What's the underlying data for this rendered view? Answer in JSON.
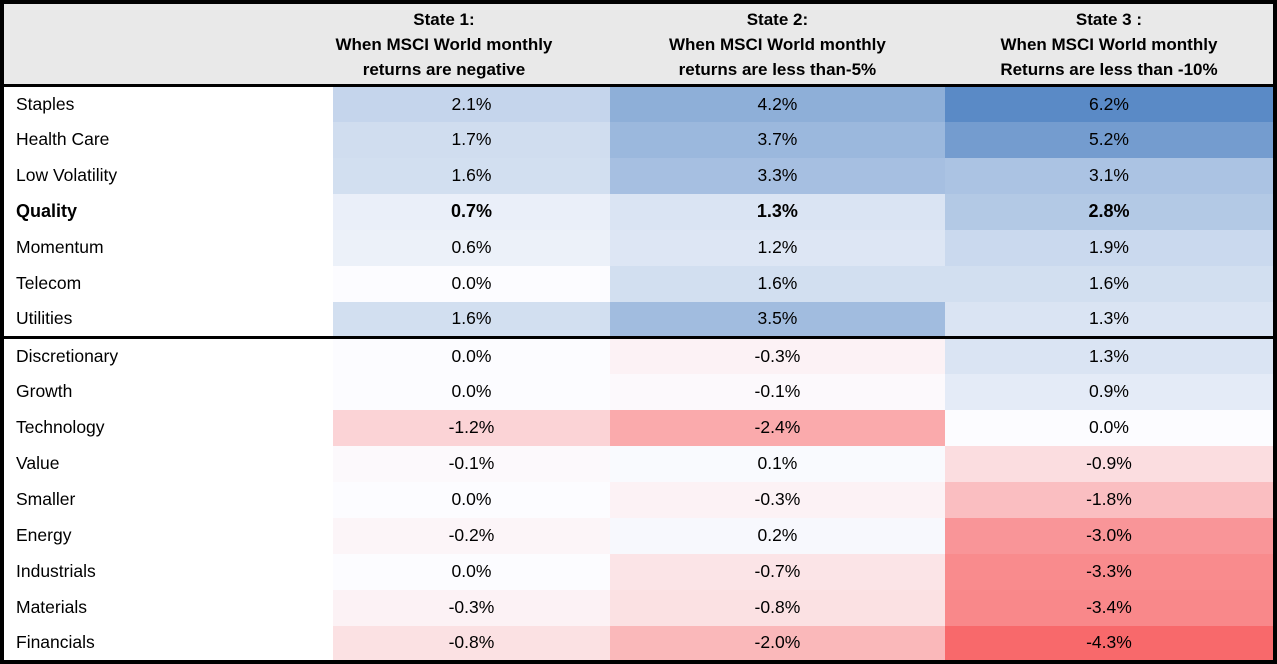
{
  "chart_data": {
    "type": "heatmap",
    "unit": "%",
    "column_headers": [
      {
        "lines": [
          "State 1:",
          "When MSCI World monthly",
          "returns are negative"
        ]
      },
      {
        "lines": [
          "State 2:",
          "When MSCI World monthly",
          "returns are less than-5%"
        ]
      },
      {
        "lines": [
          "State 3 :",
          "When MSCI World monthly",
          "Returns are less than -10%"
        ]
      }
    ],
    "row_groups": [
      {
        "name": "defensive-factors",
        "rows": [
          {
            "label": "Staples",
            "values": [
              2.1,
              4.2,
              6.2
            ],
            "bold": false
          },
          {
            "label": "Health Care",
            "values": [
              1.7,
              3.7,
              5.2
            ],
            "bold": false
          },
          {
            "label": "Low Volatility",
            "values": [
              1.6,
              3.3,
              3.1
            ],
            "bold": false
          },
          {
            "label": "Quality",
            "values": [
              0.7,
              1.3,
              2.8
            ],
            "bold": true
          },
          {
            "label": "Momentum",
            "values": [
              0.6,
              1.2,
              1.9
            ],
            "bold": false
          },
          {
            "label": "Telecom",
            "values": [
              0.0,
              1.6,
              1.6
            ],
            "bold": false
          },
          {
            "label": "Utilities",
            "values": [
              1.6,
              3.5,
              1.3
            ],
            "bold": false
          }
        ]
      },
      {
        "name": "cyclical-factors",
        "rows": [
          {
            "label": "Discretionary",
            "values": [
              0.0,
              -0.3,
              1.3
            ],
            "bold": false
          },
          {
            "label": "Growth",
            "values": [
              0.0,
              -0.1,
              0.9
            ],
            "bold": false
          },
          {
            "label": "Technology",
            "values": [
              -1.2,
              -2.4,
              0.0
            ],
            "bold": false
          },
          {
            "label": "Value",
            "values": [
              -0.1,
              0.1,
              -0.9
            ],
            "bold": false
          },
          {
            "label": "Smaller",
            "values": [
              0.0,
              -0.3,
              -1.8
            ],
            "bold": false
          },
          {
            "label": "Energy",
            "values": [
              -0.2,
              0.2,
              -3.0
            ],
            "bold": false
          },
          {
            "label": "Industrials",
            "values": [
              0.0,
              -0.7,
              -3.3
            ],
            "bold": false
          },
          {
            "label": "Materials",
            "values": [
              -0.3,
              -0.8,
              -3.4
            ],
            "bold": false
          },
          {
            "label": "Financials",
            "values": [
              -0.8,
              -2.0,
              -4.3
            ],
            "bold": false
          }
        ]
      }
    ],
    "color_scale": {
      "min": -4.3,
      "mid": 0,
      "max": 6.2,
      "min_color": "#F8696B",
      "mid_color": "#FCFCFF",
      "max_color": "#5A8AC6"
    }
  },
  "colors": {
    "header_bg": "#E9E9E9",
    "border": "#000000",
    "text": "#000000",
    "row_label_bg": "#FFFFFF"
  }
}
